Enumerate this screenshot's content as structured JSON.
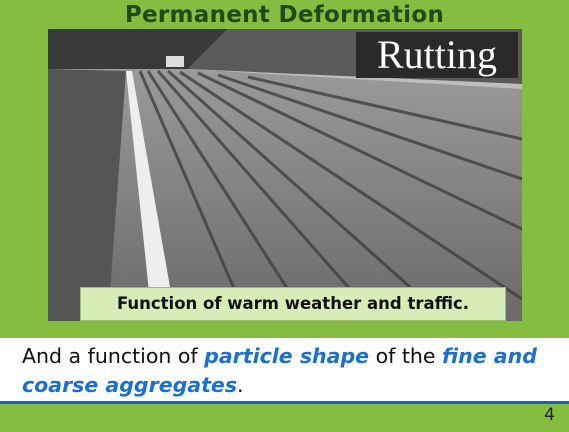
{
  "header": {
    "title": "Permanent Deformation"
  },
  "photo": {
    "label": "Rutting",
    "caption": "Function of warm weather and traffic."
  },
  "body": {
    "segments": [
      "And a function of ",
      "particle shape",
      " of the ",
      "fine and coarse aggregates",
      "."
    ]
  },
  "footer": {
    "page_number": "4"
  }
}
